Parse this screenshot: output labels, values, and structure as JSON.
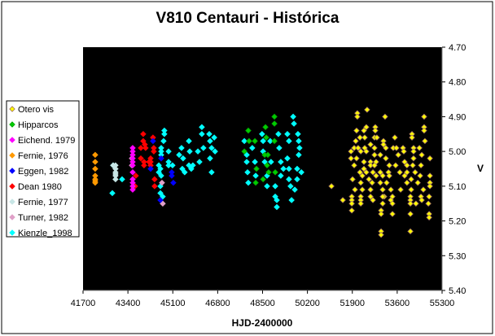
{
  "chart_data": {
    "type": "scatter",
    "title": "V810 Centauri - Histórica",
    "xlabel": "HJD-2400000",
    "ylabel": "V",
    "xlim": [
      41700,
      55300
    ],
    "ylim": [
      4.7,
      5.4
    ],
    "y_inverted": true,
    "xticks": [
      "41700",
      "43400",
      "45100",
      "46800",
      "48500",
      "50200",
      "51900",
      "53600",
      "55300"
    ],
    "yticks": [
      "4.70",
      "4.80",
      "4.90",
      "5.00",
      "5.10",
      "5.20",
      "5.30",
      "5.40"
    ],
    "plot_background": "#000000",
    "grid": false,
    "legend_position": "left",
    "series": [
      {
        "name": "Otero vis",
        "color": "#FFFF00",
        "edge": "#A07060",
        "points": [
          [
            52460,
            4.88
          ],
          [
            52090,
            4.89
          ],
          [
            52090,
            4.9
          ],
          [
            53140,
            4.9
          ],
          [
            54620,
            4.9
          ],
          [
            54620,
            4.93
          ],
          [
            54620,
            4.94
          ],
          [
            54650,
            4.97
          ],
          [
            52430,
            4.93
          ],
          [
            52340,
            4.94
          ],
          [
            52060,
            4.94
          ],
          [
            52770,
            4.93
          ],
          [
            52770,
            4.94
          ],
          [
            52740,
            4.96
          ],
          [
            52830,
            4.96
          ],
          [
            52370,
            4.96
          ],
          [
            52190,
            4.96
          ],
          [
            54160,
            4.95
          ],
          [
            54160,
            4.96
          ],
          [
            53510,
            4.96
          ],
          [
            53080,
            4.97
          ],
          [
            53080,
            4.98
          ],
          [
            52030,
            4.97
          ],
          [
            51970,
            4.99
          ],
          [
            52120,
            4.99
          ],
          [
            52370,
            4.99
          ],
          [
            52590,
            4.98
          ],
          [
            52740,
            4.99
          ],
          [
            53170,
            4.99
          ],
          [
            53450,
            4.99
          ],
          [
            53570,
            4.99
          ],
          [
            53820,
            4.99
          ],
          [
            54220,
            4.99
          ],
          [
            54440,
            4.99
          ],
          [
            51850,
            5.0
          ],
          [
            51850,
            5.02
          ],
          [
            52220,
            5.0
          ],
          [
            52430,
            5.0
          ],
          [
            52740,
            5.01
          ],
          [
            52960,
            5.01
          ],
          [
            53640,
            5.01
          ],
          [
            53850,
            5.0
          ],
          [
            54220,
            5.0
          ],
          [
            54530,
            5.01
          ],
          [
            54840,
            5.02
          ],
          [
            52060,
            5.02
          ],
          [
            52340,
            5.03
          ],
          [
            52590,
            5.03
          ],
          [
            52800,
            5.03
          ],
          [
            53170,
            5.02
          ],
          [
            53880,
            5.03
          ],
          [
            54220,
            5.02
          ],
          [
            54500,
            5.04
          ],
          [
            51970,
            5.04
          ],
          [
            52340,
            5.05
          ],
          [
            52590,
            5.04
          ],
          [
            52740,
            5.04
          ],
          [
            53300,
            5.04
          ],
          [
            53540,
            5.04
          ],
          [
            53970,
            5.04
          ],
          [
            54190,
            5.04
          ],
          [
            52190,
            5.06
          ],
          [
            52430,
            5.06
          ],
          [
            52680,
            5.06
          ],
          [
            52960,
            5.06
          ],
          [
            53270,
            5.06
          ],
          [
            53700,
            5.06
          ],
          [
            53970,
            5.06
          ],
          [
            54280,
            5.06
          ],
          [
            54840,
            5.07
          ],
          [
            51910,
            5.08
          ],
          [
            52280,
            5.07
          ],
          [
            52530,
            5.08
          ],
          [
            52800,
            5.07
          ],
          [
            53050,
            5.07
          ],
          [
            53300,
            5.07
          ],
          [
            53880,
            5.07
          ],
          [
            54130,
            5.08
          ],
          [
            54470,
            5.07
          ],
          [
            51110,
            5.1
          ],
          [
            52220,
            5.09
          ],
          [
            52650,
            5.09
          ],
          [
            52960,
            5.09
          ],
          [
            53200,
            5.09
          ],
          [
            53970,
            5.09
          ],
          [
            54380,
            5.09
          ],
          [
            54840,
            5.09
          ],
          [
            52000,
            5.11
          ],
          [
            52280,
            5.11
          ],
          [
            52590,
            5.11
          ],
          [
            53050,
            5.11
          ],
          [
            53360,
            5.11
          ],
          [
            53730,
            5.11
          ],
          [
            54130,
            5.11
          ],
          [
            54590,
            5.11
          ],
          [
            54840,
            5.1
          ],
          [
            52220,
            5.13
          ],
          [
            52590,
            5.13
          ],
          [
            53110,
            5.13
          ],
          [
            53420,
            5.13
          ],
          [
            54100,
            5.13
          ],
          [
            54500,
            5.13
          ],
          [
            54810,
            5.13
          ],
          [
            51880,
            5.13
          ],
          [
            51540,
            5.14
          ],
          [
            51880,
            5.14
          ],
          [
            52220,
            5.14
          ],
          [
            52680,
            5.14
          ],
          [
            53050,
            5.13
          ],
          [
            53360,
            5.14
          ],
          [
            54100,
            5.14
          ],
          [
            54530,
            5.14
          ],
          [
            51880,
            5.15
          ],
          [
            52220,
            5.15
          ],
          [
            53050,
            5.15
          ],
          [
            53420,
            5.15
          ],
          [
            54100,
            5.15
          ],
          [
            54310,
            5.15
          ],
          [
            54780,
            5.15
          ],
          [
            51880,
            5.17
          ],
          [
            52990,
            5.17
          ],
          [
            53420,
            5.18
          ],
          [
            54100,
            5.18
          ],
          [
            54810,
            5.18
          ],
          [
            54810,
            5.19
          ],
          [
            52990,
            5.18
          ],
          [
            52990,
            5.23
          ],
          [
            52990,
            5.24
          ],
          [
            54100,
            5.23
          ]
        ]
      },
      {
        "name": "Hipparcos",
        "color": "#00CC00",
        "edge": "#00AA00",
        "points": [
          [
            48950,
            4.9
          ],
          [
            48950,
            4.92
          ],
          [
            48610,
            4.93
          ],
          [
            48950,
            4.97
          ],
          [
            48700,
            5.01
          ],
          [
            47960,
            4.94
          ],
          [
            47990,
            4.97
          ],
          [
            48210,
            4.97
          ],
          [
            47810,
            5.0
          ],
          [
            48270,
            5.05
          ],
          [
            48670,
            5.04
          ],
          [
            48730,
            5.06
          ],
          [
            48980,
            5.06
          ],
          [
            48520,
            5.08
          ],
          [
            48240,
            5.09
          ],
          [
            48640,
            4.96
          ],
          [
            48580,
            5.01
          ]
        ]
      },
      {
        "name": "Eichend. 1979",
        "color": "#FF00FF",
        "edge": "#FF00FF",
        "points": [
          [
            43580,
            4.99
          ],
          [
            43580,
            5.0
          ],
          [
            43580,
            5.01
          ],
          [
            43580,
            5.02
          ],
          [
            43580,
            5.03
          ],
          [
            43580,
            5.04
          ],
          [
            43580,
            5.06
          ],
          [
            43580,
            5.08
          ],
          [
            43580,
            5.09
          ],
          [
            43580,
            5.1
          ],
          [
            43580,
            5.11
          ]
        ]
      },
      {
        "name": "Fernie, 1976",
        "color": "#FF9900",
        "edge": "#FF9900",
        "points": [
          [
            42160,
            5.01
          ],
          [
            42160,
            5.03
          ],
          [
            42160,
            5.05
          ],
          [
            42160,
            5.07
          ],
          [
            42160,
            5.08
          ],
          [
            42160,
            5.085
          ],
          [
            42160,
            5.09
          ]
        ]
      },
      {
        "name": "Eggen, 1982",
        "color": "#0000FF",
        "edge": "#0000FF",
        "points": [
          [
            44350,
            4.97
          ],
          [
            44260,
            5.05
          ],
          [
            45060,
            5.06
          ],
          [
            45060,
            5.07
          ],
          [
            45120,
            5.09
          ],
          [
            44660,
            5.02
          ],
          [
            44630,
            5.14
          ]
        ]
      },
      {
        "name": "Dean 1980",
        "color": "#FF0000",
        "edge": "#FF0000",
        "points": [
          [
            43980,
            4.95
          ],
          [
            43980,
            4.97
          ],
          [
            44040,
            4.98
          ],
          [
            44070,
            4.99
          ],
          [
            43890,
            4.99
          ],
          [
            43890,
            5.02
          ],
          [
            44010,
            5.03
          ],
          [
            44010,
            5.04
          ],
          [
            44350,
            4.96
          ],
          [
            44380,
            4.99
          ],
          [
            44380,
            5.0
          ],
          [
            44260,
            5.02
          ],
          [
            44260,
            5.03
          ],
          [
            44260,
            5.04
          ],
          [
            43700,
            5.07
          ],
          [
            43670,
            5.1
          ],
          [
            44410,
            5.08
          ],
          [
            44410,
            5.1
          ],
          [
            44200,
            5.03
          ]
        ]
      },
      {
        "name": "Fernie, 1977",
        "color": "#C8E6E6",
        "edge": "#C8E6E6",
        "points": [
          [
            42930,
            5.04
          ],
          [
            42930,
            5.05
          ],
          [
            42930,
            5.06
          ],
          [
            42930,
            5.065
          ],
          [
            42930,
            5.07
          ],
          [
            42930,
            5.08
          ],
          [
            42840,
            5.04
          ]
        ]
      },
      {
        "name": "Turner, 1982",
        "color": "#E0A0C8",
        "edge": "#E0A0C8",
        "points": [
          [
            43550,
            5.02
          ],
          [
            43550,
            5.04
          ],
          [
            44690,
            5.09
          ],
          [
            44720,
            5.15
          ]
        ]
      },
      {
        "name": "Kienzle_1998",
        "color": "#00FFFF",
        "edge": "#00FFFF",
        "points": [
          [
            44780,
            4.94
          ],
          [
            44780,
            4.95
          ],
          [
            44750,
            4.97
          ],
          [
            44660,
            4.99
          ],
          [
            44660,
            5.0
          ],
          [
            44660,
            5.01
          ],
          [
            44570,
            5.04
          ],
          [
            44630,
            5.05
          ],
          [
            44570,
            5.06
          ],
          [
            44660,
            5.07
          ],
          [
            44630,
            5.1
          ],
          [
            44630,
            5.12
          ],
          [
            44720,
            5.13
          ],
          [
            44940,
            5.0
          ],
          [
            44940,
            5.03
          ],
          [
            45090,
            5.04
          ],
          [
            44940,
            5.04
          ],
          [
            45340,
            5.01
          ],
          [
            45430,
            4.99
          ],
          [
            45490,
            5.02
          ],
          [
            45460,
            5.05
          ],
          [
            45550,
            5.06
          ],
          [
            45710,
            4.97
          ],
          [
            45740,
            5.0
          ],
          [
            45710,
            5.04
          ],
          [
            45800,
            5.05
          ],
          [
            45860,
            5.04
          ],
          [
            46050,
            5.0
          ],
          [
            46110,
            5.03
          ],
          [
            46200,
            4.93
          ],
          [
            46200,
            4.95
          ],
          [
            46260,
            4.99
          ],
          [
            46480,
            4.95
          ],
          [
            46510,
            4.97
          ],
          [
            46570,
            4.99
          ],
          [
            46510,
            5.02
          ],
          [
            46570,
            5.06
          ],
          [
            46670,
            4.96
          ],
          [
            46700,
            5.0
          ],
          [
            43180,
            5.08
          ],
          [
            42810,
            5.12
          ],
          [
            42840,
            5.04
          ],
          [
            47900,
            5.01
          ],
          [
            47900,
            5.03
          ],
          [
            47930,
            5.06
          ],
          [
            47960,
            5.09
          ],
          [
            48110,
            4.99
          ],
          [
            48210,
            5.03
          ],
          [
            48240,
            5.07
          ],
          [
            48480,
            4.95
          ],
          [
            48520,
            4.97
          ],
          [
            48520,
            5.0
          ],
          [
            48580,
            5.03
          ],
          [
            48670,
            5.07
          ],
          [
            48670,
            5.1
          ],
          [
            48790,
            4.97
          ],
          [
            48820,
            5.03
          ],
          [
            48980,
            5.1
          ],
          [
            48980,
            5.13
          ],
          [
            49040,
            5.14
          ],
          [
            49040,
            5.16
          ],
          [
            49100,
            4.95
          ],
          [
            49130,
            4.99
          ],
          [
            49190,
            5.03
          ],
          [
            49190,
            5.07
          ],
          [
            49290,
            5.05
          ],
          [
            49440,
            4.95
          ],
          [
            49500,
            4.97
          ],
          [
            49440,
            5.02
          ],
          [
            49500,
            5.05
          ],
          [
            49500,
            5.08
          ],
          [
            49560,
            5.1
          ],
          [
            49660,
            4.9
          ],
          [
            49690,
            4.92
          ],
          [
            49840,
            4.95
          ],
          [
            49870,
            4.97
          ],
          [
            49900,
            4.99
          ],
          [
            49870,
            5.01
          ],
          [
            49810,
            5.05
          ],
          [
            49810,
            5.08
          ],
          [
            49970,
            5.06
          ],
          [
            49720,
            5.11
          ],
          [
            49600,
            5.14
          ],
          [
            47810,
            4.97
          ]
        ]
      }
    ]
  }
}
